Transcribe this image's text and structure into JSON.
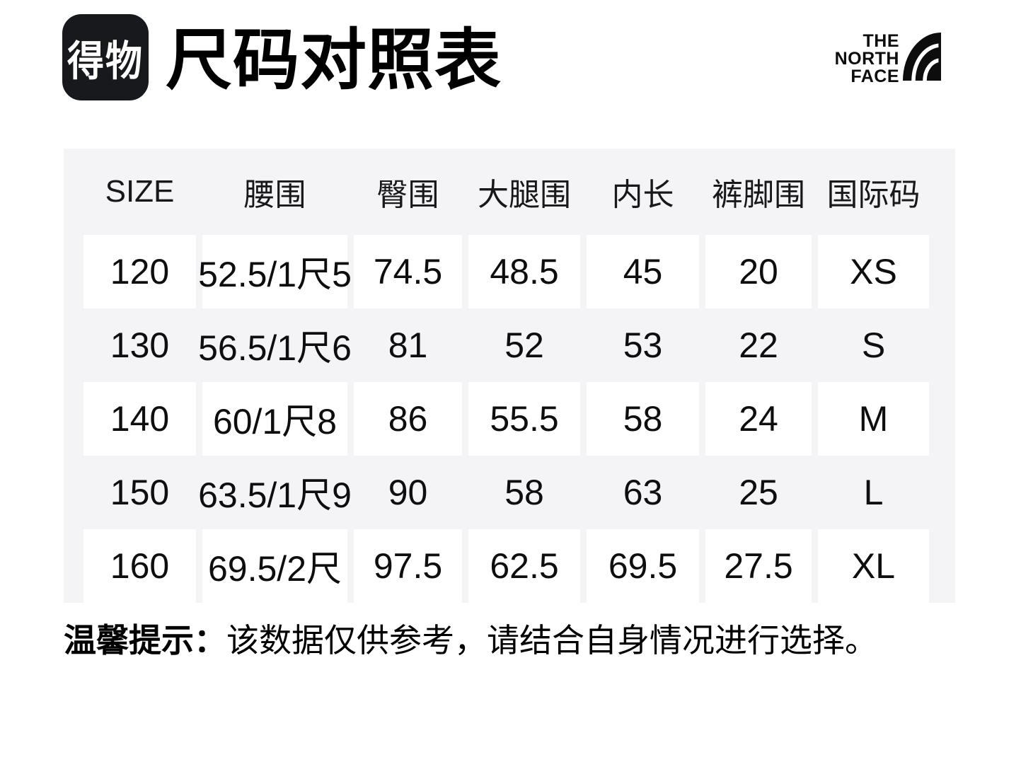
{
  "header": {
    "logo_text": "得物",
    "title": "尺码对照表",
    "brand": {
      "line1": "THE",
      "line2": "NORTH",
      "line3": "FACE"
    }
  },
  "table": {
    "columns": [
      "SIZE",
      "腰围",
      "臀围",
      "大腿围",
      "内长",
      "裤脚围",
      "国际码"
    ],
    "rows": [
      [
        "120",
        "52.5/1尺5",
        "74.5",
        "48.5",
        "45",
        "20",
        "XS"
      ],
      [
        "130",
        "56.5/1尺6",
        "81",
        "52",
        "53",
        "22",
        "S"
      ],
      [
        "140",
        "60/1尺8",
        "86",
        "55.5",
        "58",
        "24",
        "M"
      ],
      [
        "150",
        "63.5/1尺9",
        "90",
        "58",
        "63",
        "25",
        "L"
      ],
      [
        "160",
        "69.5/2尺",
        "97.5",
        "62.5",
        "69.5",
        "27.5",
        "XL"
      ]
    ]
  },
  "footer": {
    "tip_label": "温馨提示：",
    "tip_text": "该数据仅供参考，请结合自身情况进行选择。"
  },
  "colors": {
    "page_bg": "#ffffff",
    "panel_bg": "#f4f4f6",
    "cell_bg": "#ffffff",
    "text": "#0e0e10",
    "logo_bg": "#17191d",
    "logo_text": "#ffffff"
  }
}
